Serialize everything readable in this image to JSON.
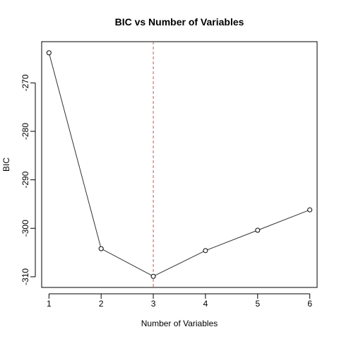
{
  "chart_data": {
    "type": "line",
    "title": "BIC vs Number of Variables",
    "xlabel": "Number of Variables",
    "ylabel": "BIC",
    "x": [
      1,
      2,
      3,
      4,
      5,
      6
    ],
    "y": [
      -263.8,
      -304.2,
      -309.9,
      -304.6,
      -300.4,
      -296.2
    ],
    "xlim": [
      0.86,
      6.14
    ],
    "ylim": [
      -312.2,
      -261.5
    ],
    "xticks": [
      1,
      2,
      3,
      4,
      5,
      6
    ],
    "yticks": [
      -310,
      -300,
      -290,
      -280,
      -270
    ],
    "vline": {
      "x": 3,
      "color": "#e8474a",
      "style": "dashed"
    },
    "line_color": "#333333",
    "marker": "open-circle",
    "grid": false
  }
}
